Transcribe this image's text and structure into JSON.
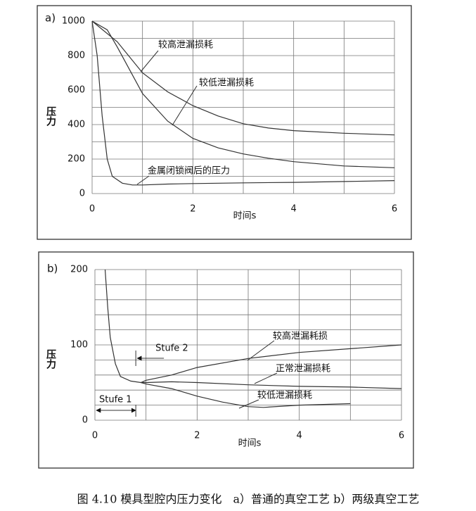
{
  "chart_data": [
    {
      "type": "line",
      "panel": "a)",
      "xlabel": "时间s",
      "ylabel": "压力",
      "xlim": [
        0,
        6
      ],
      "ylim": [
        0,
        1000
      ],
      "xticks": [
        0,
        2,
        4,
        6
      ],
      "yticks": [
        0,
        200,
        400,
        600,
        800,
        1000
      ],
      "xgrid": [
        1,
        2,
        3,
        4,
        5,
        6
      ],
      "ygrid": [
        100,
        200,
        300,
        400,
        500,
        600,
        700,
        800,
        900,
        1000
      ],
      "series": [
        {
          "name": "较高泄漏损耗",
          "color": "#333333",
          "x": [
            0,
            0.5,
            1,
            1.5,
            2,
            2.5,
            3,
            3.5,
            4,
            5,
            6
          ],
          "values": [
            1000,
            880,
            700,
            590,
            510,
            450,
            405,
            380,
            365,
            350,
            340
          ]
        },
        {
          "name": "较低泄漏损耗",
          "color": "#333333",
          "x": [
            0,
            0.3,
            0.5,
            1,
            1.5,
            2,
            2.5,
            3,
            3.5,
            4,
            5,
            6
          ],
          "values": [
            1000,
            950,
            850,
            580,
            420,
            320,
            265,
            230,
            205,
            185,
            160,
            150
          ]
        },
        {
          "name": "金属闭锁阀后的压力",
          "color": "#333333",
          "x": [
            0,
            0.1,
            0.2,
            0.3,
            0.4,
            0.6,
            0.8,
            1,
            1.5,
            2,
            3,
            4,
            5,
            6
          ],
          "values": [
            1000,
            800,
            450,
            200,
            100,
            60,
            50,
            50,
            55,
            58,
            62,
            65,
            70,
            75
          ]
        }
      ]
    },
    {
      "type": "line",
      "panel": "b)",
      "xlabel": "时间s",
      "ylabel": "压力",
      "xlim": [
        0,
        6
      ],
      "ylim": [
        0,
        200
      ],
      "xticks": [
        0,
        2,
        4,
        6
      ],
      "yticks": [
        0,
        100,
        200
      ],
      "xgrid": [
        1,
        2,
        3,
        4,
        5,
        6
      ],
      "ygrid": [
        20,
        40,
        60,
        80,
        100,
        120,
        140,
        160,
        180,
        200
      ],
      "annotations": [
        "Stufe 1",
        "Stufe 2"
      ],
      "series": [
        {
          "name": "较高泄漏耗损",
          "color": "#333333",
          "x": [
            0.2,
            0.25,
            0.3,
            0.4,
            0.5,
            0.7,
            0.9,
            1,
            1.5,
            2,
            3,
            4,
            5,
            6
          ],
          "values": [
            200,
            150,
            110,
            75,
            58,
            52,
            50,
            53,
            60,
            70,
            82,
            90,
            95,
            100
          ]
        },
        {
          "name": "正常泄漏损耗",
          "color": "#333333",
          "x": [
            0.9,
            1,
            1.5,
            2,
            3,
            4,
            5,
            6
          ],
          "values": [
            50,
            50,
            51,
            50,
            47,
            45,
            44,
            42
          ]
        },
        {
          "name": "较低泄漏损耗",
          "color": "#333333",
          "x": [
            0.9,
            1,
            1.5,
            2,
            2.5,
            3,
            3.3,
            4,
            5
          ],
          "values": [
            50,
            48,
            42,
            32,
            24,
            18,
            17,
            20,
            22
          ]
        }
      ]
    }
  ],
  "caption": "图 4.10 模具型腔内压力变化　a）普通的真空工艺 b）两级真空工艺"
}
